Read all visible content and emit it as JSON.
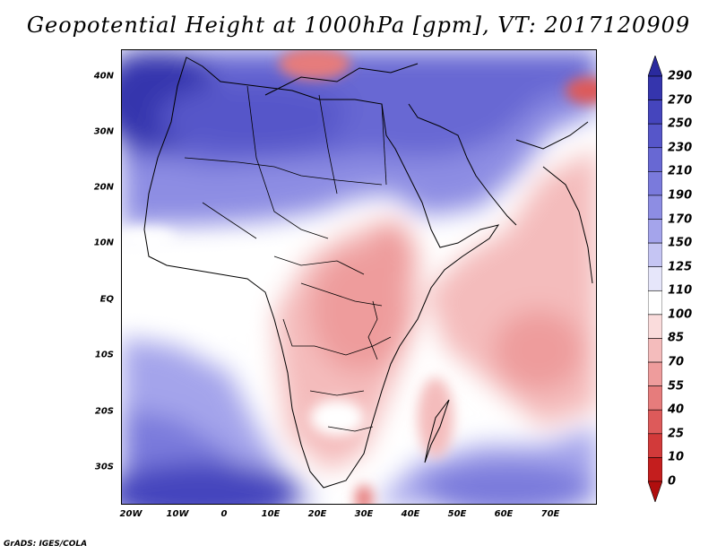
{
  "title": "Geopotential Height at 1000hPa [gpm], VT: 2017120909",
  "credit": "GrADS: IGES/COLA",
  "lat_labels": [
    "40N",
    "30N",
    "20N",
    "10N",
    "EQ",
    "10S",
    "20S",
    "30S"
  ],
  "lon_labels": [
    "20W",
    "10W",
    "0",
    "10E",
    "20E",
    "30E",
    "40E",
    "50E",
    "60E",
    "70E"
  ],
  "colorbar": {
    "levels": [
      "290",
      "270",
      "250",
      "230",
      "210",
      "190",
      "170",
      "150",
      "125",
      "110",
      "100",
      "85",
      "70",
      "55",
      "40",
      "25",
      "10",
      "0"
    ],
    "colors": [
      "#2a2a9e",
      "#3535ad",
      "#4545bd",
      "#5656c9",
      "#6868d3",
      "#7a7adc",
      "#8d8de3",
      "#a4a4eb",
      "#c5c5f3",
      "#e6e6fa",
      "#ffffff",
      "#fadcdc",
      "#f4bcbc",
      "#ee9c9c",
      "#e67c7c",
      "#dd5a5a",
      "#d23a3a",
      "#c41e1e",
      "#b00e0e"
    ]
  }
}
